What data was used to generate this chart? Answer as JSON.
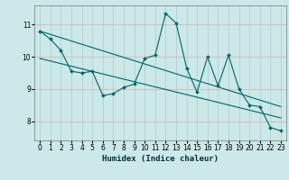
{
  "xlabel": "Humidex (Indice chaleur)",
  "bg_color": "#cce8e8",
  "grid_color": "#bbcccc",
  "line_color": "#006666",
  "xlim": [
    -0.5,
    23.5
  ],
  "ylim": [
    7.4,
    11.6
  ],
  "x_ticks": [
    0,
    1,
    2,
    3,
    4,
    5,
    6,
    7,
    8,
    9,
    10,
    11,
    12,
    13,
    14,
    15,
    16,
    17,
    18,
    19,
    20,
    21,
    22,
    23
  ],
  "y_ticks": [
    8,
    9,
    10,
    11
  ],
  "main_line": [
    [
      0,
      10.8
    ],
    [
      1,
      10.55
    ],
    [
      2,
      10.2
    ],
    [
      3,
      9.55
    ],
    [
      4,
      9.5
    ],
    [
      5,
      9.55
    ],
    [
      6,
      8.8
    ],
    [
      7,
      8.85
    ],
    [
      8,
      9.05
    ],
    [
      9,
      9.15
    ],
    [
      10,
      9.95
    ],
    [
      11,
      10.05
    ],
    [
      12,
      11.35
    ],
    [
      13,
      11.05
    ],
    [
      14,
      9.65
    ],
    [
      15,
      8.9
    ],
    [
      16,
      10.0
    ],
    [
      17,
      9.1
    ],
    [
      18,
      10.05
    ],
    [
      19,
      9.0
    ],
    [
      20,
      8.5
    ],
    [
      21,
      8.45
    ],
    [
      22,
      7.8
    ],
    [
      23,
      7.7
    ]
  ],
  "upper_line": [
    [
      0,
      10.8
    ],
    [
      23,
      8.45
    ]
  ],
  "lower_line": [
    [
      0,
      9.95
    ],
    [
      23,
      8.1
    ]
  ],
  "xlabel_fontsize": 6.5,
  "tick_fontsize": 5.5,
  "marker_size": 2.0,
  "line_width": 0.8
}
